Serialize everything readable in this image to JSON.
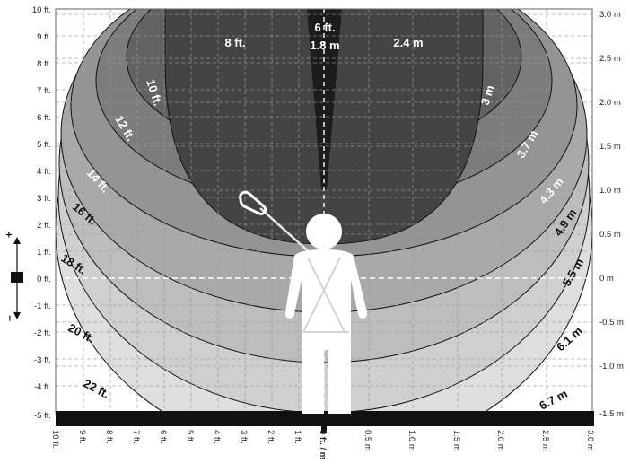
{
  "left_axis": {
    "ticks": [
      "10 ft.",
      "9 ft.",
      "8 ft.",
      "7 ft.",
      "6 ft.",
      "5 ft.",
      "4 ft.",
      "3 ft.",
      "2 ft.",
      "1 ft.",
      "0 ft.",
      "-1 ft.",
      "-2 ft.",
      "-3 ft.",
      "-4 ft.",
      "-5 ft."
    ]
  },
  "right_axis": {
    "ticks": [
      "3.0 m",
      "2.5 m",
      "2.0 m",
      "1.5 m",
      "1.0 m",
      "0.5 m",
      "0 m",
      "-0.5 m",
      "-1.0 m",
      "-1.5 m"
    ]
  },
  "bottom_axis": {
    "left_ticks": [
      "10 ft.",
      "9 ft.",
      "8 ft.",
      "7 ft.",
      "6 ft.",
      "5 ft.",
      "4 ft.",
      "3 ft.",
      "2 ft.",
      "1 ft."
    ],
    "center_tick": "0 ft. / m",
    "right_ticks": [
      "0.5 m",
      "1.0 m",
      "1.5 m",
      "2.0 m",
      "2.5 m",
      "3.0 m"
    ]
  },
  "height_indicator": {
    "plus": "+",
    "minus": "–"
  },
  "zones": {
    "top_ft": "6 ft.",
    "top_m": "1.8 m",
    "ft_labels": [
      "8 ft.",
      "10 ft.",
      "12 ft.",
      "14 ft.",
      "16 ft.",
      "18 ft.",
      "20 ft.",
      "22 ft."
    ],
    "m_labels": [
      "2.4 m",
      "3 m",
      "3.7 m",
      "4.3 m",
      "4.9 m",
      "5.5 m",
      "6.1 m",
      "6.7 m"
    ]
  },
  "colors": {
    "zone_darkest": "#1c1c1c",
    "zone_1": "#444444",
    "zone_2": "#626262",
    "zone_3": "#7c7c7c",
    "zone_4": "#949494",
    "zone_5": "#a9a9a9",
    "zone_6": "#bdbdbd",
    "zone_7": "#cfcfcf",
    "zone_8": "#dedede",
    "grid": "#9a9a9a",
    "floor": "#111111",
    "figure": "#ffffff"
  }
}
